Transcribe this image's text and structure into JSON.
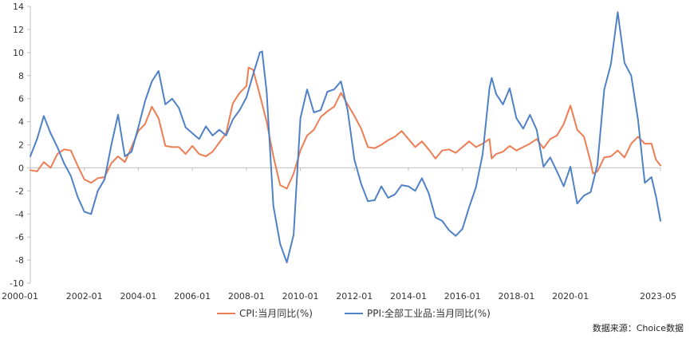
{
  "chart_data": {
    "type": "line",
    "title": "",
    "ylim": [
      -10,
      14
    ],
    "yticks": [
      -10,
      -8,
      -6,
      -4,
      -2,
      0,
      2,
      4,
      6,
      8,
      10,
      12,
      14
    ],
    "xlim": [
      "2000-01",
      "2023-05"
    ],
    "xticks": [
      "2000-01",
      "2002-01",
      "2004-01",
      "2006-01",
      "2008-01",
      "2010-01",
      "2012-01",
      "2014-01",
      "2016-01",
      "2018-01",
      "2020-01",
      "2023-05"
    ],
    "grid": false,
    "legend_position": "bottom",
    "colors": {
      "cpi": "#ED7D53",
      "ppi": "#4F81C7",
      "axis": "#BFBFBF"
    },
    "series": [
      {
        "name": "CPI:当月同比(%)",
        "x": [
          "2000-01",
          "2000-04",
          "2000-07",
          "2000-10",
          "2001-01",
          "2001-04",
          "2001-07",
          "2001-10",
          "2002-01",
          "2002-04",
          "2002-07",
          "2002-10",
          "2003-01",
          "2003-04",
          "2003-07",
          "2003-10",
          "2004-01",
          "2004-04",
          "2004-07",
          "2004-10",
          "2005-01",
          "2005-04",
          "2005-07",
          "2005-10",
          "2006-01",
          "2006-04",
          "2006-07",
          "2006-10",
          "2007-01",
          "2007-04",
          "2007-07",
          "2007-10",
          "2008-01",
          "2008-02",
          "2008-04",
          "2008-07",
          "2008-10",
          "2009-01",
          "2009-04",
          "2009-07",
          "2009-10",
          "2010-01",
          "2010-04",
          "2010-07",
          "2010-10",
          "2011-01",
          "2011-04",
          "2011-07",
          "2011-10",
          "2012-01",
          "2012-04",
          "2012-07",
          "2012-10",
          "2013-01",
          "2013-04",
          "2013-07",
          "2013-10",
          "2014-01",
          "2014-04",
          "2014-07",
          "2014-10",
          "2015-01",
          "2015-04",
          "2015-07",
          "2015-10",
          "2016-01",
          "2016-04",
          "2016-07",
          "2016-10",
          "2017-01",
          "2017-02",
          "2017-04",
          "2017-07",
          "2017-10",
          "2018-01",
          "2018-04",
          "2018-07",
          "2018-10",
          "2019-01",
          "2019-04",
          "2019-07",
          "2019-10",
          "2020-01",
          "2020-04",
          "2020-07",
          "2020-10",
          "2020-11",
          "2021-01",
          "2021-04",
          "2021-07",
          "2021-10",
          "2022-01",
          "2022-04",
          "2022-07",
          "2022-10",
          "2023-01",
          "2023-03",
          "2023-05"
        ],
        "values": [
          -0.2,
          -0.3,
          0.5,
          0.0,
          1.2,
          1.6,
          1.5,
          0.2,
          -1.0,
          -1.3,
          -0.9,
          -0.8,
          0.4,
          1.0,
          0.5,
          1.8,
          3.2,
          3.8,
          5.3,
          4.3,
          1.9,
          1.8,
          1.8,
          1.2,
          1.9,
          1.2,
          1.0,
          1.4,
          2.2,
          3.0,
          5.6,
          6.5,
          7.1,
          8.7,
          8.5,
          6.3,
          4.0,
          1.0,
          -1.5,
          -1.8,
          -0.5,
          1.5,
          2.8,
          3.3,
          4.4,
          4.9,
          5.3,
          6.5,
          5.5,
          4.5,
          3.4,
          1.8,
          1.7,
          2.0,
          2.4,
          2.7,
          3.2,
          2.5,
          1.8,
          2.3,
          1.6,
          0.8,
          1.5,
          1.6,
          1.3,
          1.8,
          2.3,
          1.8,
          2.1,
          2.5,
          0.8,
          1.2,
          1.4,
          1.9,
          1.5,
          1.8,
          2.1,
          2.5,
          1.7,
          2.5,
          2.8,
          3.8,
          5.4,
          3.3,
          2.7,
          0.5,
          -0.5,
          -0.3,
          0.9,
          1.0,
          1.5,
          0.9,
          2.1,
          2.7,
          2.1,
          2.1,
          0.7,
          0.2
        ]
      },
      {
        "name": "PPI:全部工业品:当月同比(%)",
        "x": [
          "2000-01",
          "2000-04",
          "2000-07",
          "2000-10",
          "2001-01",
          "2001-04",
          "2001-07",
          "2001-10",
          "2002-01",
          "2002-04",
          "2002-07",
          "2002-10",
          "2003-01",
          "2003-04",
          "2003-07",
          "2003-10",
          "2004-01",
          "2004-04",
          "2004-07",
          "2004-10",
          "2005-01",
          "2005-04",
          "2005-07",
          "2005-10",
          "2006-01",
          "2006-04",
          "2006-07",
          "2006-10",
          "2007-01",
          "2007-04",
          "2007-07",
          "2007-10",
          "2008-01",
          "2008-04",
          "2008-07",
          "2008-08",
          "2008-10",
          "2009-01",
          "2009-04",
          "2009-07",
          "2009-10",
          "2010-01",
          "2010-04",
          "2010-07",
          "2010-10",
          "2011-01",
          "2011-04",
          "2011-07",
          "2011-10",
          "2012-01",
          "2012-04",
          "2012-07",
          "2012-10",
          "2013-01",
          "2013-04",
          "2013-07",
          "2013-10",
          "2014-01",
          "2014-04",
          "2014-07",
          "2014-10",
          "2015-01",
          "2015-04",
          "2015-07",
          "2015-10",
          "2016-01",
          "2016-04",
          "2016-07",
          "2016-10",
          "2017-01",
          "2017-02",
          "2017-04",
          "2017-07",
          "2017-10",
          "2018-01",
          "2018-04",
          "2018-07",
          "2018-10",
          "2019-01",
          "2019-04",
          "2019-07",
          "2019-10",
          "2020-01",
          "2020-04",
          "2020-07",
          "2020-10",
          "2021-01",
          "2021-04",
          "2021-07",
          "2021-10",
          "2022-01",
          "2022-04",
          "2022-07",
          "2022-10",
          "2023-01",
          "2023-03",
          "2023-05"
        ],
        "values": [
          1.0,
          2.5,
          4.5,
          3.0,
          1.8,
          0.4,
          -0.7,
          -2.5,
          -3.8,
          -4.0,
          -2.0,
          -1.0,
          2.0,
          4.6,
          1.0,
          1.4,
          3.5,
          5.8,
          7.5,
          8.4,
          5.5,
          6.0,
          5.2,
          3.5,
          3.0,
          2.5,
          3.6,
          2.8,
          3.3,
          2.8,
          4.2,
          5.0,
          6.1,
          8.1,
          10.0,
          10.1,
          6.6,
          -3.3,
          -6.6,
          -8.2,
          -5.8,
          4.3,
          6.8,
          4.8,
          5.0,
          6.6,
          6.8,
          7.5,
          5.0,
          0.7,
          -1.4,
          -2.9,
          -2.8,
          -1.6,
          -2.6,
          -2.3,
          -1.5,
          -1.6,
          -2.0,
          -0.9,
          -2.2,
          -4.3,
          -4.6,
          -5.4,
          -5.9,
          -5.3,
          -3.4,
          -1.7,
          1.2,
          6.9,
          7.8,
          6.4,
          5.5,
          6.9,
          4.3,
          3.4,
          4.6,
          3.3,
          0.1,
          0.9,
          -0.3,
          -1.6,
          0.1,
          -3.1,
          -2.4,
          -2.1,
          0.3,
          6.8,
          9.0,
          13.5,
          9.1,
          8.0,
          4.2,
          -1.3,
          -0.8,
          -2.5,
          -4.6
        ]
      }
    ]
  },
  "source_label": "数据来源：Choice数据"
}
